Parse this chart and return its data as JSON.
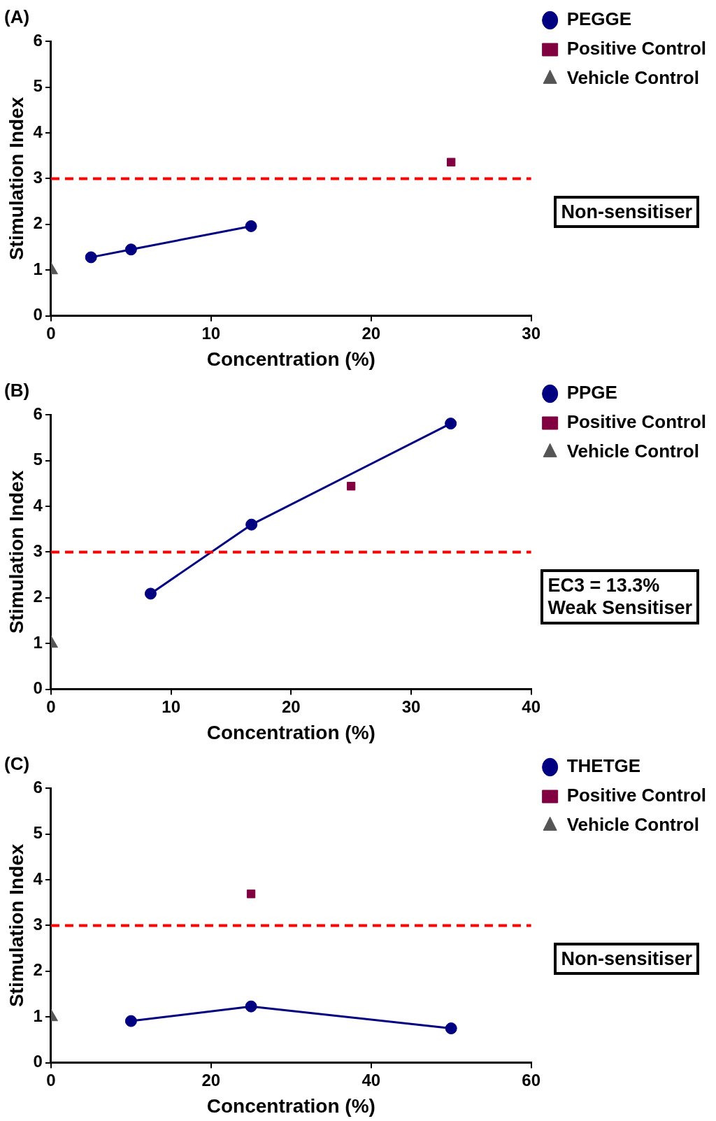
{
  "chart_data": [
    {
      "type": "line",
      "title": "(A)",
      "xlabel": "Concentration (%)",
      "ylabel": "Stimulation Index",
      "xlim": [
        0,
        30
      ],
      "xticks": [
        0,
        10,
        20,
        30
      ],
      "ylim": [
        0,
        6
      ],
      "yticks": [
        0,
        1,
        2,
        3,
        4,
        5,
        6
      ],
      "grid": false,
      "legend": "right",
      "ref_lines": [
        {
          "axis": "y",
          "value": 3,
          "color": "#ff0000",
          "line_style": "dashed"
        }
      ],
      "annotations": [
        "Non-sensitiser"
      ],
      "series": [
        {
          "name": "PEGGE",
          "marker": "circle",
          "color": "#000080",
          "x": [
            2.5,
            5,
            12.5
          ],
          "values": [
            1.28,
            1.45,
            1.96
          ]
        },
        {
          "name": "Positive Control",
          "type": "scatter",
          "marker": "square",
          "color": "#800040",
          "x": [
            25
          ],
          "values": [
            3.36
          ]
        },
        {
          "name": "Vehicle Control",
          "type": "scatter",
          "marker": "triangle",
          "color": "#555555",
          "x": [
            0
          ],
          "values": [
            1.0
          ]
        }
      ]
    },
    {
      "type": "line",
      "title": "(B)",
      "xlabel": "Concentration (%)",
      "ylabel": "Stimulation Index",
      "xlim": [
        0,
        40
      ],
      "xticks": [
        0,
        10,
        20,
        30,
        40
      ],
      "ylim": [
        0,
        6
      ],
      "yticks": [
        0,
        1,
        2,
        3,
        4,
        5,
        6
      ],
      "grid": false,
      "legend": "right",
      "ref_lines": [
        {
          "axis": "y",
          "value": 3,
          "color": "#ff0000",
          "line_style": "dashed"
        }
      ],
      "annotations": [
        "EC3 = 13.3%\nWeak Sensitiser"
      ],
      "series": [
        {
          "name": "PPGE",
          "marker": "circle",
          "color": "#000080",
          "x": [
            8.3,
            16.7,
            33.3
          ],
          "values": [
            2.09,
            3.6,
            5.81
          ]
        },
        {
          "name": "Positive Control",
          "type": "scatter",
          "marker": "square",
          "color": "#800040",
          "x": [
            25
          ],
          "values": [
            4.44
          ]
        },
        {
          "name": "Vehicle Control",
          "type": "scatter",
          "marker": "triangle",
          "color": "#555555",
          "x": [
            0
          ],
          "values": [
            1.0
          ]
        }
      ]
    },
    {
      "type": "line",
      "title": "(C)",
      "xlabel": "Concentration (%)",
      "ylabel": "Stimulation Index",
      "xlim": [
        0,
        60
      ],
      "xticks": [
        0,
        20,
        40,
        60
      ],
      "ylim": [
        0,
        6
      ],
      "yticks": [
        0,
        1,
        2,
        3,
        4,
        5,
        6
      ],
      "grid": false,
      "legend": "right",
      "ref_lines": [
        {
          "axis": "y",
          "value": 3,
          "color": "#ff0000",
          "line_style": "dashed"
        }
      ],
      "annotations": [
        "Non-sensitiser"
      ],
      "series": [
        {
          "name": "THETGE",
          "marker": "circle",
          "color": "#000080",
          "x": [
            10,
            25,
            50
          ],
          "values": [
            0.91,
            1.23,
            0.75
          ]
        },
        {
          "name": "Positive Control",
          "type": "scatter",
          "marker": "square",
          "color": "#800040",
          "x": [
            25
          ],
          "values": [
            3.69
          ]
        },
        {
          "name": "Vehicle Control",
          "type": "scatter",
          "marker": "triangle",
          "color": "#555555",
          "x": [
            0
          ],
          "values": [
            1.0
          ]
        }
      ]
    }
  ]
}
